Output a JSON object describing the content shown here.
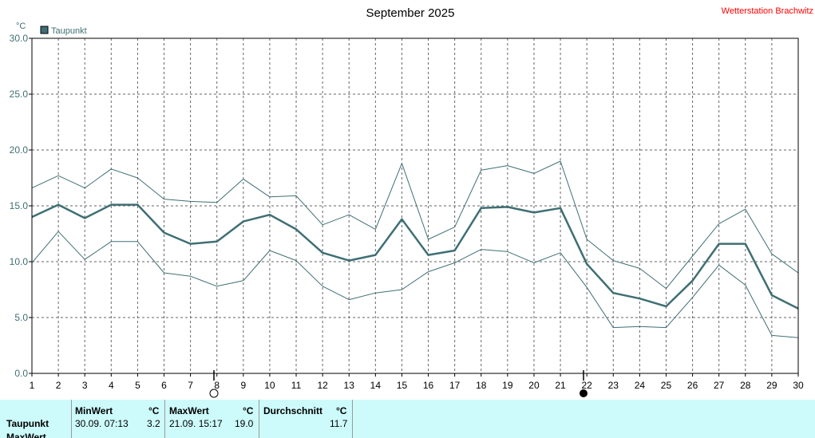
{
  "station": "Wetterstation Brachwitz",
  "chart_data": {
    "type": "line",
    "title": "September 2025",
    "ylabel": "°C",
    "ylim": [
      0,
      30
    ],
    "yticks": [
      "0.0",
      "5.0",
      "10.0",
      "15.0",
      "20.0",
      "25.0",
      "30.0"
    ],
    "x": [
      1,
      2,
      3,
      4,
      5,
      6,
      7,
      8,
      9,
      10,
      11,
      12,
      13,
      14,
      15,
      16,
      17,
      18,
      19,
      20,
      21,
      22,
      23,
      24,
      25,
      26,
      27,
      28,
      29,
      30
    ],
    "grid": true,
    "legend": {
      "position": "top-left",
      "label": "Taupunkt",
      "color": "#3f6f73"
    },
    "series": [
      {
        "name": "Taupunkt",
        "role": "mean",
        "color": "#3f6f73",
        "values": [
          14.0,
          15.1,
          13.9,
          15.1,
          15.1,
          12.6,
          11.6,
          11.8,
          13.6,
          14.2,
          12.9,
          10.8,
          10.1,
          10.6,
          13.8,
          10.6,
          11.0,
          14.8,
          14.9,
          14.4,
          14.8,
          9.8,
          7.2,
          6.7,
          6.0,
          8.3,
          11.6,
          11.6,
          7.0,
          5.8
        ]
      },
      {
        "role": "max",
        "color": "#3f6f73",
        "values": [
          16.6,
          17.7,
          16.6,
          18.3,
          17.5,
          15.6,
          15.4,
          15.3,
          17.4,
          15.8,
          15.9,
          13.3,
          14.2,
          12.9,
          18.8,
          12.0,
          13.1,
          18.2,
          18.6,
          17.9,
          19.0,
          12.0,
          10.1,
          9.4,
          7.6,
          10.5,
          13.4,
          14.7,
          10.7,
          9.0
        ]
      },
      {
        "role": "min",
        "color": "#3f6f73",
        "values": [
          9.9,
          12.7,
          10.2,
          11.8,
          11.8,
          9.0,
          8.7,
          7.8,
          8.3,
          11.0,
          10.1,
          7.8,
          6.6,
          7.2,
          7.5,
          9.1,
          9.9,
          11.1,
          10.9,
          9.9,
          10.8,
          7.7,
          4.1,
          4.2,
          4.1,
          6.8,
          9.7,
          7.9,
          3.4,
          3.2
        ]
      }
    ],
    "moon_phases": [
      {
        "day": 8,
        "phase": "full-moon"
      },
      {
        "day": 22,
        "phase": "new-moon"
      }
    ]
  },
  "stats": {
    "min_header": "MinWert",
    "max_header": "MaxWert",
    "avg_header": "Durchschnitt",
    "unit": "°C",
    "rows": [
      {
        "label": "Taupunkt",
        "min_time": "30.09.  07:13",
        "min_value": "3.2",
        "max_time": "21.09.  15:17",
        "max_value": "19.0",
        "avg_value": "11.7"
      }
    ],
    "next_row_label": "MaxWert"
  }
}
